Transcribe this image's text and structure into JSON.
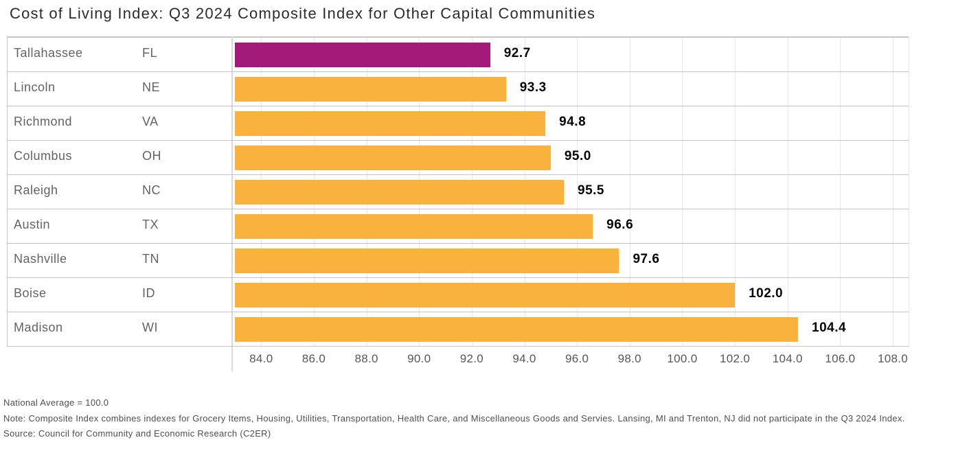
{
  "title": "Cost of Living Index: Q3 2024 Composite Index for Other Capital Communities",
  "chart_data": {
    "type": "bar",
    "orientation": "horizontal",
    "title": "Cost of Living Index: Q3 2024 Composite Index for Other Capital Communities",
    "xlim": [
      83.0,
      108.6
    ],
    "ticks": [
      84.0,
      86.0,
      88.0,
      90.0,
      92.0,
      94.0,
      96.0,
      98.0,
      100.0,
      102.0,
      104.0,
      106.0,
      108.0
    ],
    "grid": true,
    "value_label_format": "one-decimal",
    "colors": {
      "highlight_bar": "#a31a78",
      "default_bar": "#fab23e"
    },
    "rows": [
      {
        "city": "Tallahassee",
        "state": "FL",
        "value": 92.7,
        "highlight": true
      },
      {
        "city": "Lincoln",
        "state": "NE",
        "value": 93.3,
        "highlight": false
      },
      {
        "city": "Richmond",
        "state": "VA",
        "value": 94.8,
        "highlight": false
      },
      {
        "city": "Columbus",
        "state": "OH",
        "value": 95.0,
        "highlight": false
      },
      {
        "city": "Raleigh",
        "state": "NC",
        "value": 95.5,
        "highlight": false
      },
      {
        "city": "Austin",
        "state": "TX",
        "value": 96.6,
        "highlight": false
      },
      {
        "city": "Nashville",
        "state": "TN",
        "value": 97.6,
        "highlight": false
      },
      {
        "city": "Boise",
        "state": "ID",
        "value": 102.0,
        "highlight": false
      },
      {
        "city": "Madison",
        "state": "WI",
        "value": 104.4,
        "highlight": false
      }
    ]
  },
  "footnotes": {
    "national_average": "National Average = 100.0",
    "note": "Note: Composite Index combines indexes for Grocery Items, Housing, Utilities, Transportation, Health Care, and Miscellaneous Goods and Servies. Lansing, MI and Trenton, NJ did not participate in the Q3 2024 Index.",
    "source": "Source: Council for Community and Economic Research (C2ER)"
  }
}
